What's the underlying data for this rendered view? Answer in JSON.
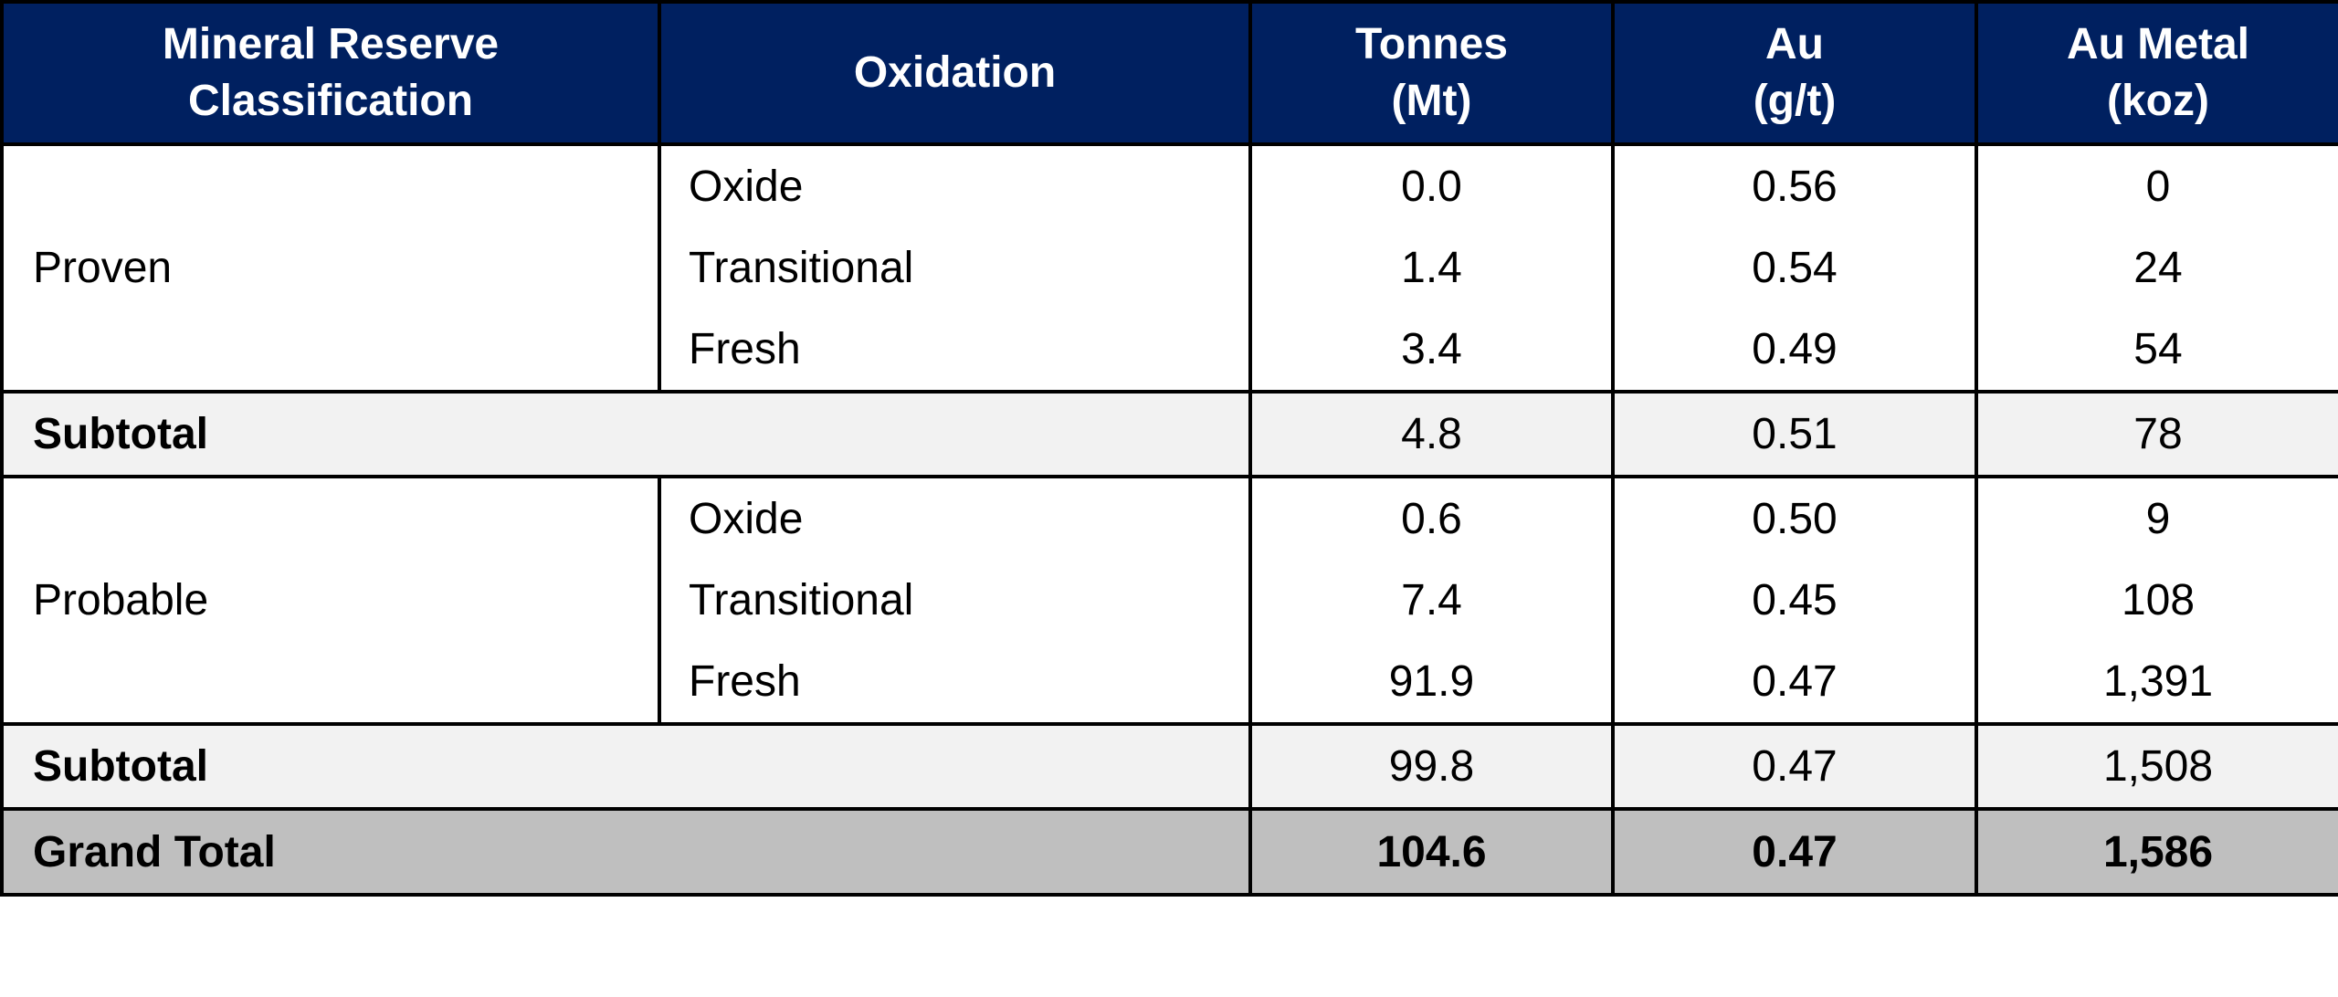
{
  "header": {
    "columns": [
      [
        "Mineral Reserve",
        "Classification"
      ],
      [
        "Oxidation"
      ],
      [
        "Tonnes",
        "(Mt)"
      ],
      [
        "Au",
        "(g/t)"
      ],
      [
        "Au Metal",
        "(koz)"
      ]
    ]
  },
  "groups": [
    {
      "classification": "Proven",
      "rows": [
        [
          "Oxide",
          "0.0",
          "0.56",
          "0"
        ],
        [
          "Transitional",
          "1.4",
          "0.54",
          "24"
        ],
        [
          "Fresh",
          "3.4",
          "0.49",
          "54"
        ]
      ],
      "subtotal": [
        "Subtotal",
        "4.8",
        "0.51",
        "78"
      ]
    },
    {
      "classification": "Probable",
      "rows": [
        [
          "Oxide",
          "0.6",
          "0.50",
          "9"
        ],
        [
          "Transitional",
          "7.4",
          "0.45",
          "108"
        ],
        [
          "Fresh",
          "91.9",
          "0.47",
          "1,391"
        ]
      ],
      "subtotal": [
        "Subtotal",
        "99.8",
        "0.47",
        "1,508"
      ]
    }
  ],
  "grand_total": [
    "Grand Total",
    "104.6",
    "0.47",
    "1,586"
  ]
}
